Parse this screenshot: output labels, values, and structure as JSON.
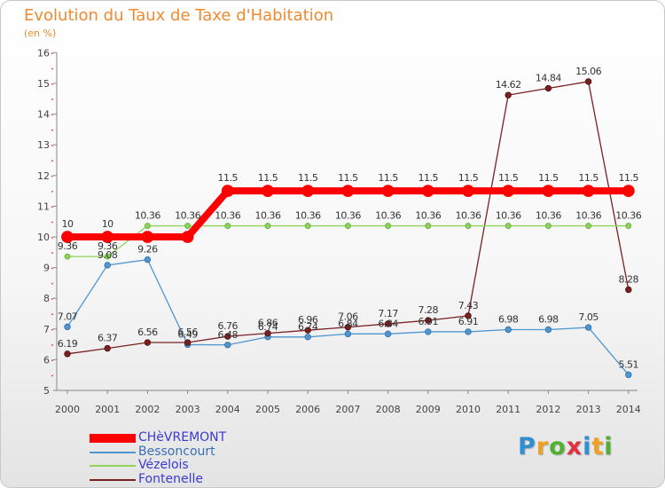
{
  "header": {
    "title": "Evolution du Taux de Taxe d'Habitation",
    "unit": "(en %)"
  },
  "brand": {
    "letters": [
      "P",
      "r",
      "o",
      "x",
      "i",
      "t",
      "i"
    ],
    "colors": [
      "#2f8fd0",
      "#f0a020",
      "#50b030",
      "#e03040",
      "#2f8fd0",
      "#f0a020",
      "#50b030"
    ]
  },
  "chart_data": {
    "type": "line",
    "x": [
      2000,
      2001,
      2002,
      2003,
      2004,
      2005,
      2006,
      2007,
      2008,
      2009,
      2010,
      2011,
      2012,
      2013,
      2014
    ],
    "y_ticks": [
      5,
      6,
      7,
      8,
      9,
      10,
      11,
      12,
      13,
      14,
      15,
      16
    ],
    "ylim": [
      5,
      16
    ],
    "series": [
      {
        "name": "CHèVREMONT",
        "color": "#ff0000",
        "values": [
          10,
          10,
          10,
          10,
          11.5,
          11.5,
          11.5,
          11.5,
          11.5,
          11.5,
          11.5,
          11.5,
          11.5,
          11.5,
          11.5
        ],
        "labels": [
          "10",
          "10",
          "",
          "",
          "11.5",
          "11.5",
          "11.5",
          "11.5",
          "11.5",
          "11.5",
          "11.5",
          "11.5",
          "11.5",
          "11.5",
          "11.5"
        ]
      },
      {
        "name": "Bessoncourt",
        "color": "#4f95d0",
        "values": [
          7.07,
          9.08,
          9.26,
          6.49,
          6.48,
          6.74,
          6.74,
          6.84,
          6.84,
          6.91,
          6.91,
          6.98,
          6.98,
          7.05,
          5.51
        ],
        "labels": [
          "7.07",
          "9.08",
          "9.26",
          "6.49",
          "6.48",
          "6.74",
          "6.74",
          "6.84",
          "6.84",
          "6.91",
          "6.91",
          "6.98",
          "6.98",
          "7.05",
          "5.51"
        ]
      },
      {
        "name": "Vézelois",
        "color": "#8ed35a",
        "values": [
          9.36,
          9.36,
          10.36,
          10.36,
          10.36,
          10.36,
          10.36,
          10.36,
          10.36,
          10.36,
          10.36,
          10.36,
          10.36,
          10.36,
          10.36
        ],
        "labels": [
          "9.36",
          "9.36",
          "10.36",
          "10.36",
          "10.36",
          "10.36",
          "10.36",
          "10.36",
          "10.36",
          "10.36",
          "10.36",
          "10.36",
          "10.36",
          "10.36",
          "10.36"
        ]
      },
      {
        "name": "Fontenelle",
        "color": "#7b2020",
        "values": [
          6.19,
          6.37,
          6.56,
          6.56,
          6.76,
          6.86,
          6.96,
          7.06,
          7.17,
          7.28,
          7.43,
          14.62,
          14.84,
          15.06,
          8.28
        ],
        "labels": [
          "6.19",
          "6.37",
          "6.56",
          "6.56",
          "6.76",
          "6.86",
          "6.96",
          "7.06",
          "7.17",
          "7.28",
          "7.43",
          "14.62",
          "14.84",
          "15.06",
          "8.28"
        ]
      }
    ],
    "legend_position": "bottom-left",
    "grid": false
  }
}
